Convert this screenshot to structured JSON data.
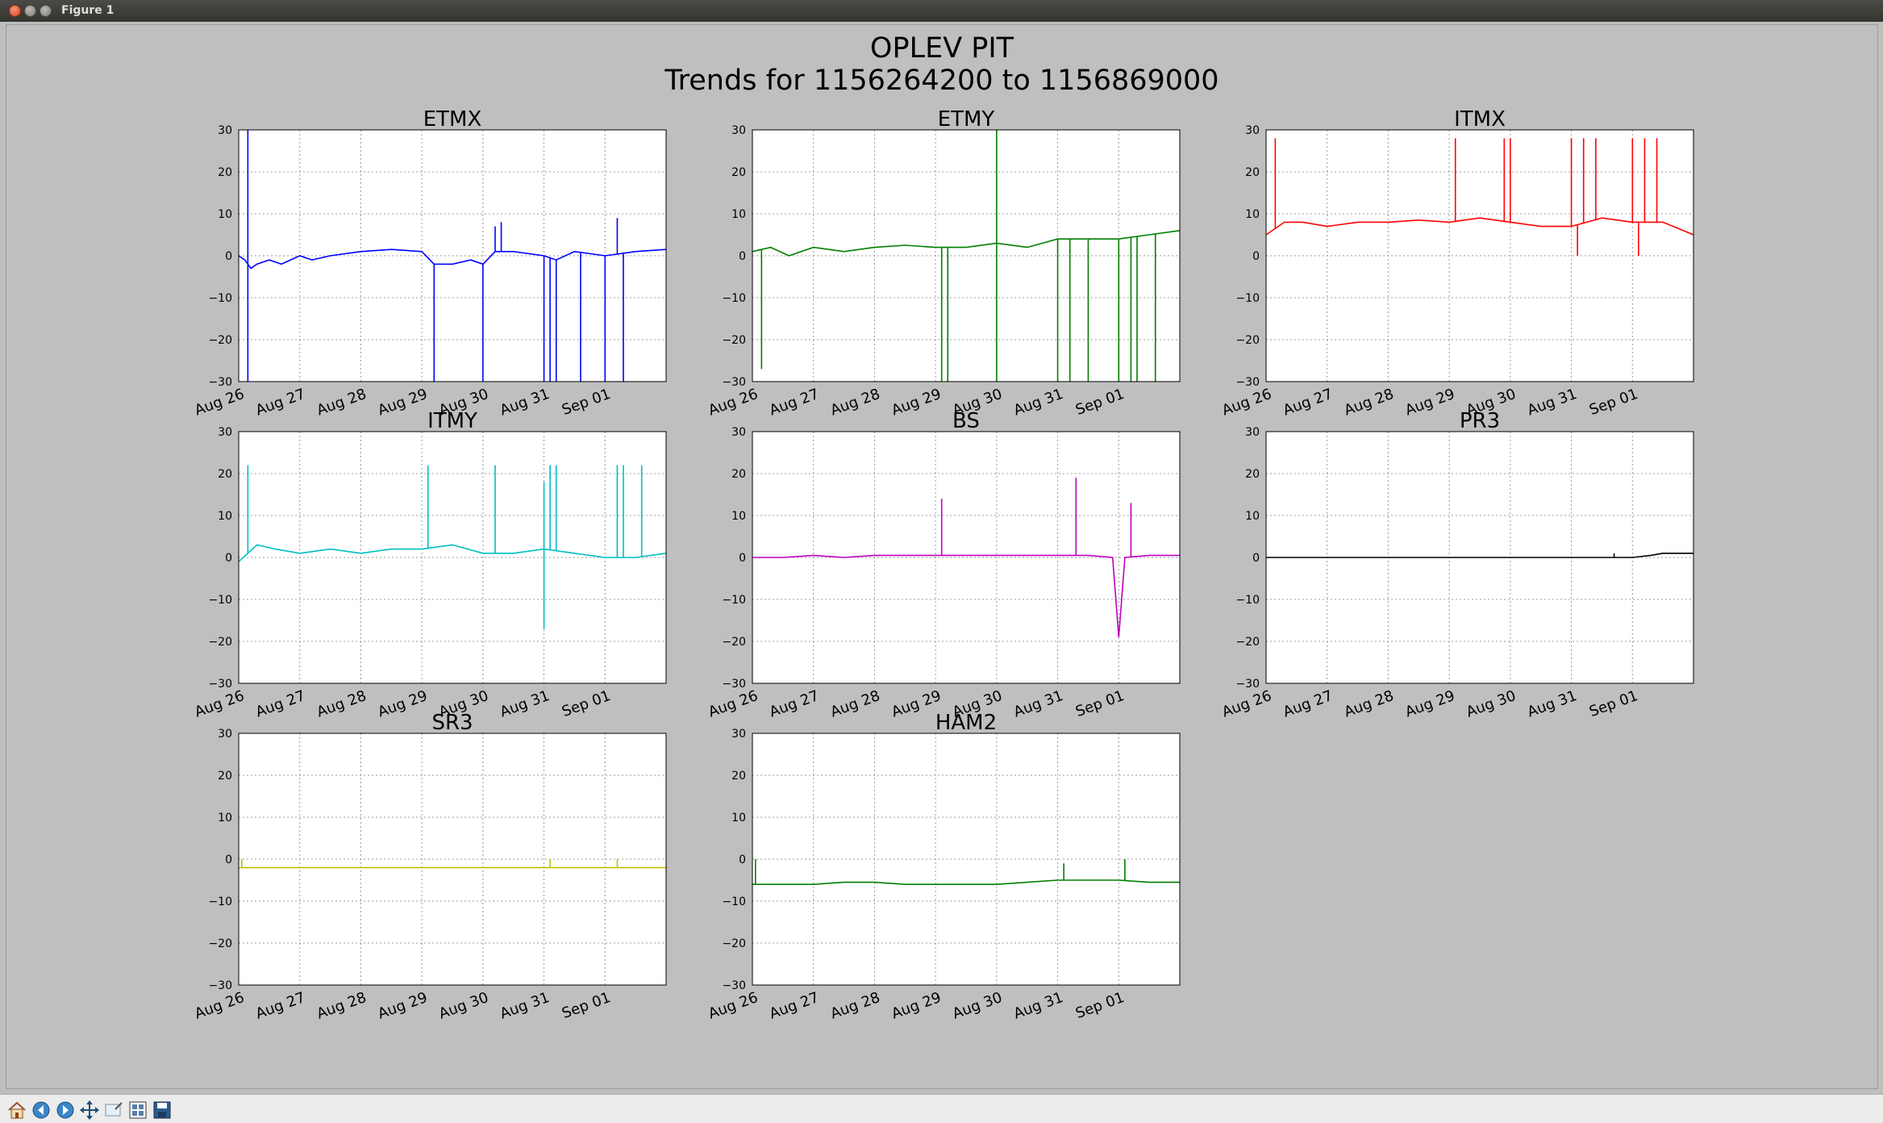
{
  "window": {
    "title": "Figure 1"
  },
  "figure": {
    "title": "OPLEV PIT",
    "subtitle": "Trends for 1156264200 to 1156869000"
  },
  "toolbar": {
    "icons": [
      "home-icon",
      "back-icon",
      "forward-icon",
      "pan-icon",
      "zoom-icon",
      "configure-subplots-icon",
      "save-icon"
    ]
  },
  "chart_data": [
    {
      "type": "line",
      "title": "ETMX",
      "color": "#0000ff",
      "xticks": [
        "Aug 26",
        "Aug 27",
        "Aug 28",
        "Aug 29",
        "Aug 30",
        "Aug 31",
        "Sep 01"
      ],
      "yticks": [
        30,
        20,
        10,
        0,
        -10,
        -20,
        -30
      ],
      "xlim": [
        0,
        7
      ],
      "ylim": [
        -30,
        30
      ],
      "grid": true,
      "series": [
        {
          "x": [
            0,
            0.1,
            0.2,
            0.3,
            0.5,
            0.7,
            1.0,
            1.2,
            1.5,
            2.0,
            2.5,
            3.0,
            3.2,
            3.5,
            3.8,
            4.0,
            4.2,
            4.5,
            5.0,
            5.2,
            5.5,
            6.0,
            6.5,
            7.0
          ],
          "y": [
            0,
            -1,
            -3,
            -2,
            -1,
            -2,
            0,
            -1,
            0,
            1,
            1.5,
            1,
            -2,
            -2,
            -1,
            -2,
            1,
            1,
            0,
            -1,
            1,
            0,
            1,
            1.5
          ],
          "spikes": [
            [
              0.15,
              30
            ],
            [
              0.15,
              -30
            ],
            [
              3.2,
              -30
            ],
            [
              4.0,
              -30
            ],
            [
              4.2,
              7
            ],
            [
              4.3,
              8
            ],
            [
              5.0,
              -30
            ],
            [
              5.1,
              -30
            ],
            [
              5.2,
              -30
            ],
            [
              5.6,
              -30
            ],
            [
              6.2,
              9
            ],
            [
              6.0,
              -30
            ],
            [
              6.3,
              -30
            ]
          ]
        }
      ]
    },
    {
      "type": "line",
      "title": "ETMY",
      "color": "#007f00",
      "xticks": [
        "Aug 26",
        "Aug 27",
        "Aug 28",
        "Aug 29",
        "Aug 30",
        "Aug 31",
        "Sep 01"
      ],
      "yticks": [
        30,
        20,
        10,
        0,
        -10,
        -20,
        -30
      ],
      "xlim": [
        0,
        7
      ],
      "ylim": [
        -30,
        30
      ],
      "grid": true,
      "series": [
        {
          "x": [
            0,
            0.3,
            0.6,
            1.0,
            1.5,
            2.0,
            2.5,
            3.0,
            3.5,
            4.0,
            4.5,
            5.0,
            5.5,
            6.0,
            6.5,
            7.0
          ],
          "y": [
            1,
            2,
            0,
            2,
            1,
            2,
            2.5,
            2,
            2,
            3,
            2,
            4,
            4,
            4,
            5,
            6
          ],
          "spikes": [
            [
              0.15,
              -27
            ],
            [
              3.1,
              -30
            ],
            [
              3.2,
              -30
            ],
            [
              4.0,
              30
            ],
            [
              4.0,
              -30
            ],
            [
              5.0,
              -30
            ],
            [
              5.2,
              -30
            ],
            [
              5.5,
              -30
            ],
            [
              6.0,
              -30
            ],
            [
              6.2,
              -30
            ],
            [
              6.3,
              -30
            ],
            [
              6.6,
              -30
            ]
          ]
        }
      ]
    },
    {
      "type": "line",
      "title": "ITMX",
      "color": "#ff0000",
      "xticks": [
        "Aug 26",
        "Aug 27",
        "Aug 28",
        "Aug 29",
        "Aug 30",
        "Aug 31",
        "Sep 01"
      ],
      "yticks": [
        30,
        20,
        10,
        0,
        -10,
        -20,
        -30
      ],
      "xlim": [
        0,
        7
      ],
      "ylim": [
        -30,
        30
      ],
      "grid": true,
      "series": [
        {
          "x": [
            0,
            0.3,
            0.6,
            1.0,
            1.5,
            2.0,
            2.5,
            3.0,
            3.5,
            4.0,
            4.5,
            5.0,
            5.5,
            6.0,
            6.5,
            7.0
          ],
          "y": [
            5,
            8,
            8,
            7,
            8,
            8,
            8.5,
            8,
            9,
            8,
            7,
            7,
            9,
            8,
            8,
            5
          ],
          "spikes": [
            [
              0.15,
              28
            ],
            [
              3.1,
              28
            ],
            [
              3.9,
              28
            ],
            [
              4.0,
              28
            ],
            [
              5.0,
              28
            ],
            [
              5.1,
              0
            ],
            [
              5.2,
              28
            ],
            [
              5.4,
              28
            ],
            [
              6.0,
              28
            ],
            [
              6.1,
              0
            ],
            [
              6.2,
              28
            ],
            [
              6.4,
              28
            ]
          ]
        }
      ]
    },
    {
      "type": "line",
      "title": "ITMY",
      "color": "#00bfbf",
      "xticks": [
        "Aug 26",
        "Aug 27",
        "Aug 28",
        "Aug 29",
        "Aug 30",
        "Aug 31",
        "Sep 01"
      ],
      "yticks": [
        30,
        20,
        10,
        0,
        -10,
        -20,
        -30
      ],
      "xlim": [
        0,
        7
      ],
      "ylim": [
        -30,
        30
      ],
      "grid": true,
      "series": [
        {
          "x": [
            0,
            0.3,
            0.6,
            1.0,
            1.5,
            2.0,
            2.5,
            3.0,
            3.5,
            4.0,
            4.5,
            5.0,
            5.5,
            6.0,
            6.5,
            7.0
          ],
          "y": [
            -1,
            3,
            2,
            1,
            2,
            1,
            2,
            2,
            3,
            1,
            1,
            2,
            1,
            0,
            0,
            1
          ],
          "spikes": [
            [
              0.15,
              22
            ],
            [
              3.1,
              22
            ],
            [
              4.2,
              22
            ],
            [
              5.0,
              18
            ],
            [
              5.0,
              -17
            ],
            [
              5.1,
              22
            ],
            [
              5.2,
              22
            ],
            [
              6.2,
              22
            ],
            [
              6.3,
              22
            ],
            [
              6.6,
              22
            ]
          ]
        }
      ]
    },
    {
      "type": "line",
      "title": "BS",
      "color": "#bf00bf",
      "xticks": [
        "Aug 26",
        "Aug 27",
        "Aug 28",
        "Aug 29",
        "Aug 30",
        "Aug 31",
        "Sep 01"
      ],
      "yticks": [
        30,
        20,
        10,
        0,
        -10,
        -20,
        -30
      ],
      "xlim": [
        0,
        7
      ],
      "ylim": [
        -30,
        30
      ],
      "grid": true,
      "series": [
        {
          "x": [
            0,
            0.5,
            1.0,
            1.5,
            2.0,
            2.5,
            3.0,
            3.5,
            4.0,
            4.5,
            5.0,
            5.5,
            5.9,
            6.0,
            6.1,
            6.5,
            7.0
          ],
          "y": [
            0,
            0,
            0.5,
            0,
            0.5,
            0.5,
            0.5,
            0.5,
            0.5,
            0.5,
            0.5,
            0.5,
            0,
            -19,
            0,
            0.5,
            0.5
          ],
          "spikes": [
            [
              3.1,
              14
            ],
            [
              5.3,
              19
            ],
            [
              6.2,
              13
            ]
          ]
        }
      ]
    },
    {
      "type": "line",
      "title": "PR3",
      "color": "#000000",
      "xticks": [
        "Aug 26",
        "Aug 27",
        "Aug 28",
        "Aug 29",
        "Aug 30",
        "Aug 31",
        "Sep 01"
      ],
      "yticks": [
        30,
        20,
        10,
        0,
        -10,
        -20,
        -30
      ],
      "xlim": [
        0,
        7
      ],
      "ylim": [
        -30,
        30
      ],
      "grid": true,
      "series": [
        {
          "x": [
            0,
            1,
            2,
            3,
            4,
            5,
            6,
            6.3,
            6.5,
            7.0
          ],
          "y": [
            0,
            0,
            0,
            0,
            0,
            0,
            0,
            0.5,
            1,
            1
          ],
          "spikes": [
            [
              5.7,
              1
            ]
          ]
        }
      ]
    },
    {
      "type": "line",
      "title": "SR3",
      "color": "#bfbf00",
      "xticks": [
        "Aug 26",
        "Aug 27",
        "Aug 28",
        "Aug 29",
        "Aug 30",
        "Aug 31",
        "Sep 01"
      ],
      "yticks": [
        30,
        20,
        10,
        0,
        -10,
        -20,
        -30
      ],
      "xlim": [
        0,
        7
      ],
      "ylim": [
        -30,
        30
      ],
      "grid": true,
      "series": [
        {
          "x": [
            0,
            1,
            2,
            3,
            4,
            5,
            6,
            7.0
          ],
          "y": [
            -2,
            -2,
            -2,
            -2,
            -2,
            -2,
            -2,
            -2
          ],
          "spikes": [
            [
              0.05,
              0
            ],
            [
              5.1,
              0
            ],
            [
              6.2,
              0
            ]
          ]
        }
      ]
    },
    {
      "type": "line",
      "title": "HAM2",
      "color": "#007f00",
      "xticks": [
        "Aug 26",
        "Aug 27",
        "Aug 28",
        "Aug 29",
        "Aug 30",
        "Aug 31",
        "Sep 01"
      ],
      "yticks": [
        30,
        20,
        10,
        0,
        -10,
        -20,
        -30
      ],
      "xlim": [
        0,
        7
      ],
      "ylim": [
        -30,
        30
      ],
      "grid": true,
      "series": [
        {
          "x": [
            0,
            0.5,
            1.0,
            1.5,
            2.0,
            2.5,
            3.0,
            3.5,
            4.0,
            4.5,
            5.0,
            5.5,
            6.0,
            6.5,
            7.0
          ],
          "y": [
            -6,
            -6,
            -6,
            -5.5,
            -5.5,
            -6,
            -6,
            -6,
            -6,
            -5.5,
            -5,
            -5,
            -5,
            -5.5,
            -5.5
          ],
          "spikes": [
            [
              0.05,
              0
            ],
            [
              5.1,
              -1
            ],
            [
              6.1,
              0
            ]
          ]
        }
      ]
    }
  ]
}
